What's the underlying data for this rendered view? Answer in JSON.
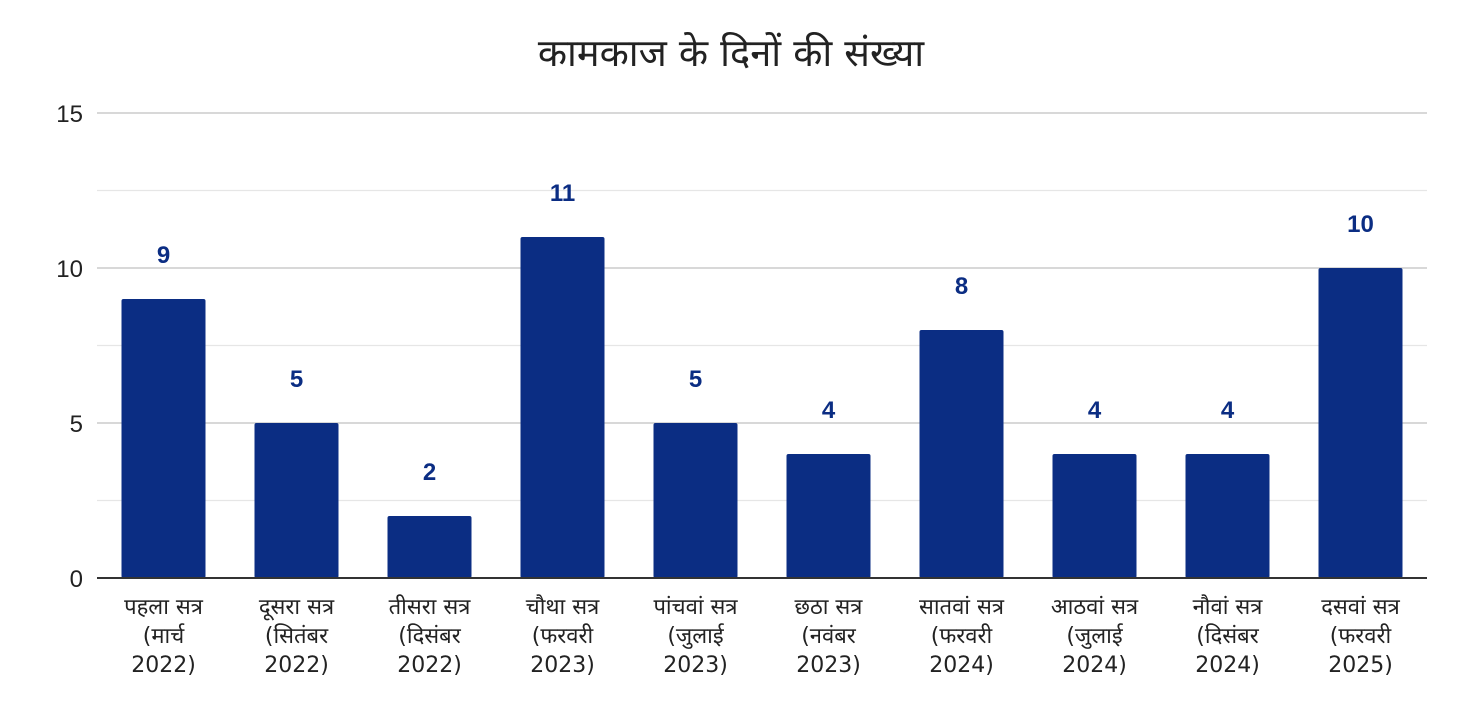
{
  "chart_data": {
    "type": "bar",
    "title": "कामकाज के दिनों की संख्या",
    "categories": [
      [
        "पहला सत्र",
        "(मार्च",
        "2022)"
      ],
      [
        "दूसरा सत्र",
        "(सितंबर",
        "2022)"
      ],
      [
        "तीसरा सत्र",
        "(दिसंबर",
        "2022)"
      ],
      [
        "चौथा सत्र",
        "(फरवरी",
        "2023)"
      ],
      [
        "पांचवां सत्र",
        "(जुलाई",
        "2023)"
      ],
      [
        "छठा सत्र",
        "(नवंबर",
        "2023)"
      ],
      [
        "सातवां सत्र",
        "(फरवरी",
        "2024)"
      ],
      [
        "आठवां सत्र",
        "(जुलाई",
        "2024)"
      ],
      [
        "नौवां सत्र",
        "(दिसंबर",
        "2024)"
      ],
      [
        "दसवां सत्र",
        "(फरवरी",
        "2025)"
      ]
    ],
    "values": [
      9,
      5,
      2,
      11,
      5,
      4,
      8,
      4,
      4,
      10
    ],
    "ylim": [
      0,
      15
    ],
    "yticks": [
      "0",
      "5",
      "10",
      "15"
    ],
    "minor_gridlines": true,
    "bar_color": "#0b2d83",
    "label_color": "#0b2d83",
    "grid_color": "#cccccc"
  }
}
